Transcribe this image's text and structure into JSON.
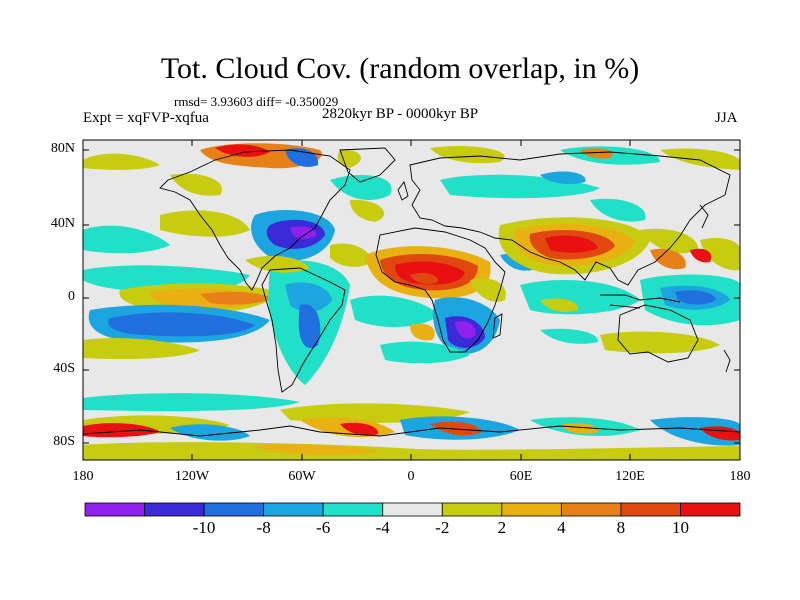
{
  "header": {
    "title": "Tot. Cloud Cov. (random overlap, in %)",
    "stats": "rmsd= 3.93603 diff= -0.350029",
    "experiment": "Expt = xqFVP-xqfua",
    "period": "2820kyr BP - 0000kyr BP",
    "season": "JJA"
  },
  "map": {
    "lat_labels": [
      "80N",
      "40N",
      "0",
      "40S",
      "80S"
    ],
    "lon_labels": [
      "180",
      "120W",
      "60W",
      "0",
      "60E",
      "120E",
      "180"
    ],
    "background_color": "#e8e8e8"
  },
  "colorbar": {
    "colors": [
      "#9020f0",
      "#3a2ad8",
      "#1f6fdf",
      "#1ca6e0",
      "#20e0c8",
      "#e8e8e8",
      "#c8cc10",
      "#e8b010",
      "#e88018",
      "#e04810",
      "#e81010"
    ],
    "labels": [
      "-10",
      "-8",
      "-6",
      "-4",
      "-2",
      "2",
      "4",
      "8",
      "10"
    ]
  }
}
